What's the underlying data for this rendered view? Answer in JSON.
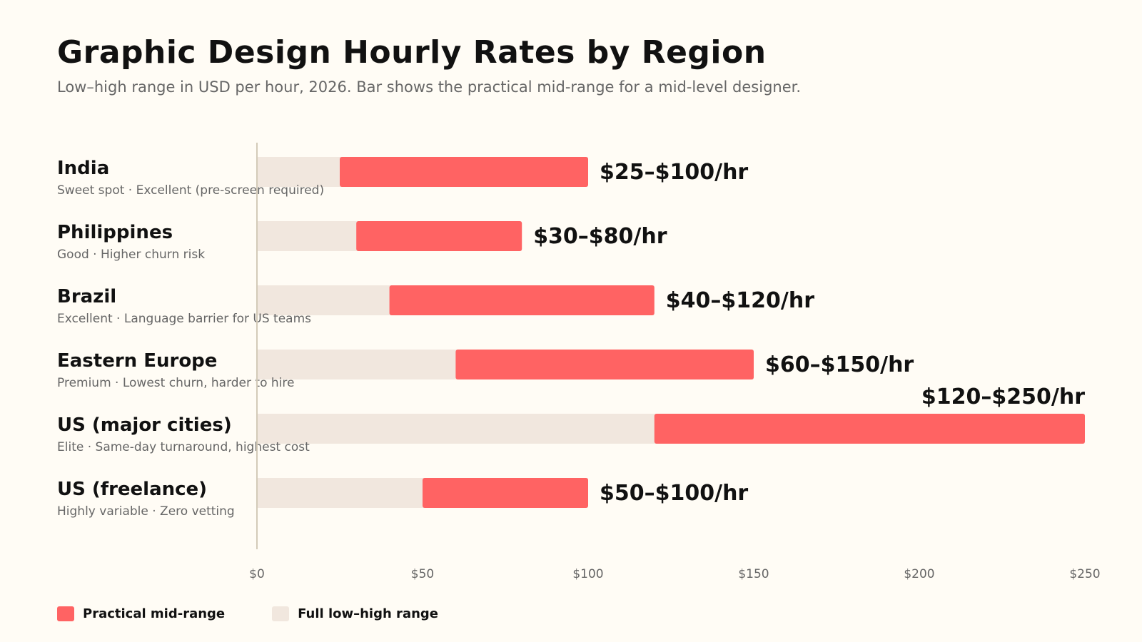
{
  "title": "Graphic Design Hourly Rates by Region",
  "subtitle": "Low–high range in USD per hour, 2026. Bar shows the practical mid-range for a mid-level designer.",
  "legend": [
    {
      "label": "Practical mid-range",
      "color": "#FF6363"
    },
    {
      "label": "Full low–high range",
      "color": "#F1E7DE"
    }
  ],
  "chart_data": {
    "type": "bar",
    "orientation": "horizontal-range",
    "xlim": [
      0,
      250
    ],
    "x_ticks": [
      0,
      50,
      100,
      150,
      200,
      250
    ],
    "x_tick_labels": [
      "$0",
      "$50",
      "$100",
      "$150",
      "$200",
      "$250"
    ],
    "grid": false,
    "legend_position": "bottom-left",
    "colors": {
      "mid_range": "#FF6363",
      "full_range": "#F1E7DE",
      "axis": "#D3CAB8"
    },
    "rows": [
      {
        "region": "India",
        "note": "Sweet spot · Excellent (pre-screen required)",
        "low": 25,
        "high": 100,
        "label": "$25–$100/hr"
      },
      {
        "region": "Philippines",
        "note": "Good · Higher churn risk",
        "low": 30,
        "high": 80,
        "label": "$30–$80/hr"
      },
      {
        "region": "Brazil",
        "note": "Excellent · Language barrier for US teams",
        "low": 40,
        "high": 120,
        "label": "$40–$120/hr"
      },
      {
        "region": "Eastern Europe",
        "note": "Premium · Lowest churn, harder to hire",
        "low": 60,
        "high": 150,
        "label": "$60–$150/hr"
      },
      {
        "region": "US (major cities)",
        "note": "Elite · Same-day turnaround, highest cost",
        "low": 120,
        "high": 250,
        "label": "$120–$250/hr"
      },
      {
        "region": "US (freelance)",
        "note": "Highly variable · Zero vetting",
        "low": 50,
        "high": 100,
        "label": "$50–$100/hr"
      }
    ]
  }
}
